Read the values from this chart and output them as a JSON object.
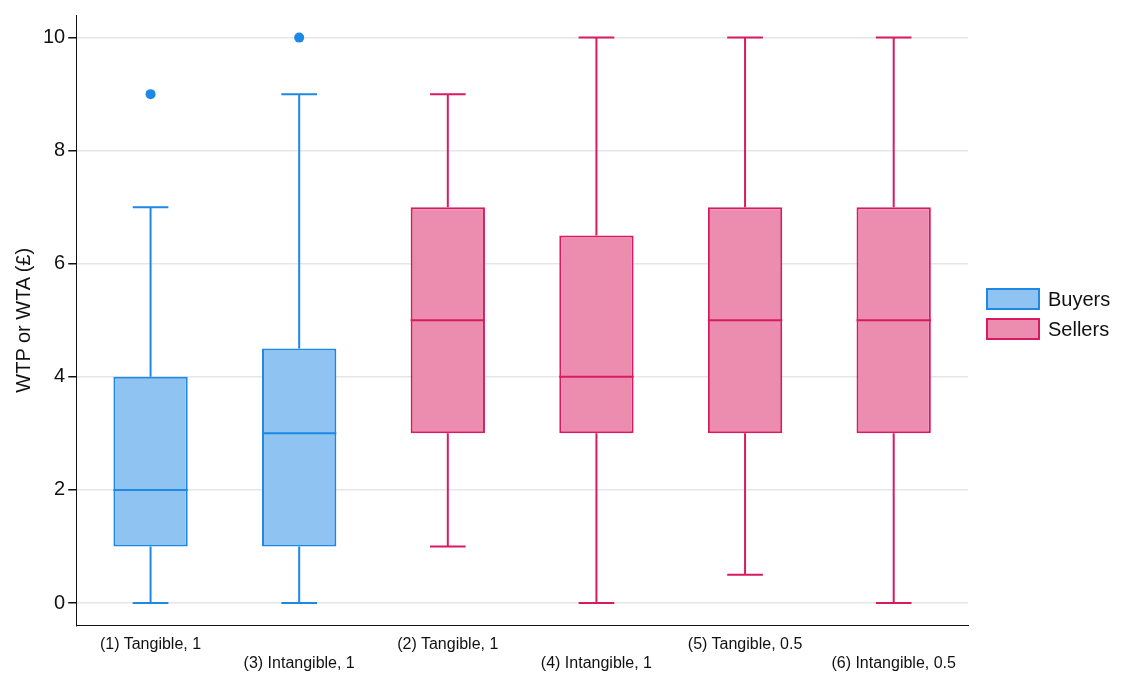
{
  "chart_data": {
    "type": "box",
    "ylabel": "WTP or WTA (£)",
    "categories": [
      "(1) Tangible, 1",
      "(3) Intangible, 1",
      "(2) Tangible, 1",
      "(4) Intangible, 1",
      "(5) Tangible, 0.5",
      "(6) Intangible, 0.5"
    ],
    "series": [
      {
        "name": "Buyers",
        "color": "#1e88e5",
        "boxes": [
          {
            "low": 0,
            "q1": 1,
            "median": 2,
            "q3": 4,
            "high": 7,
            "outliers": [
              9
            ]
          },
          {
            "low": 0,
            "q1": 1,
            "median": 3,
            "q3": 4.5,
            "high": 9,
            "outliers": [
              10
            ]
          },
          null,
          null,
          null,
          null
        ]
      },
      {
        "name": "Sellers",
        "color": "#d81b60",
        "boxes": [
          null,
          null,
          {
            "low": 1,
            "q1": 3,
            "median": 5,
            "q3": 7,
            "high": 9
          },
          {
            "low": 0,
            "q1": 3,
            "median": 4,
            "q3": 6.5,
            "high": 10
          },
          {
            "low": 0.5,
            "q1": 3,
            "median": 5,
            "q3": 7,
            "high": 10
          },
          {
            "low": 0,
            "q1": 3,
            "median": 5,
            "q3": 7,
            "high": 10
          }
        ]
      }
    ],
    "ylim": [
      -0.4,
      10.4
    ],
    "yticks": [
      0,
      2,
      4,
      6,
      8,
      10
    ],
    "grid": "y",
    "legend": "right"
  }
}
